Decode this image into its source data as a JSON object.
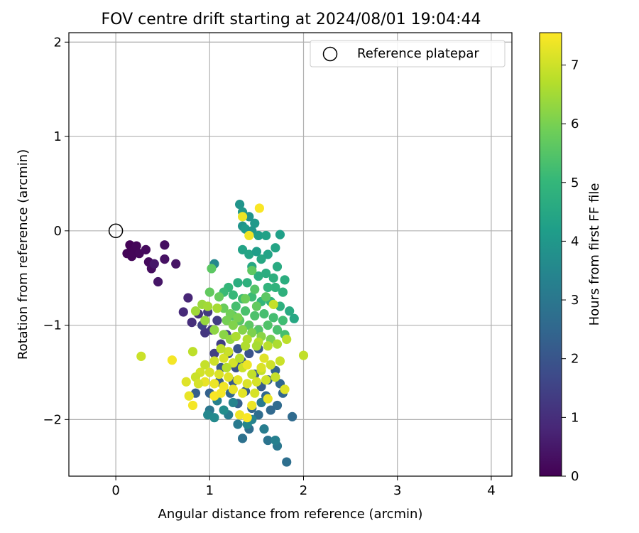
{
  "chart_data": {
    "type": "scatter",
    "title": "FOV centre drift starting at 2024/08/01 19:04:44",
    "xlabel": "Angular distance from reference (arcmin)",
    "ylabel": "Rotation from reference (arcmin)",
    "xlim": [
      -0.5,
      4.22
    ],
    "ylim": [
      -2.6,
      2.1
    ],
    "xticks": [
      0,
      1,
      2,
      3,
      4
    ],
    "yticks": [
      -2,
      -1,
      0,
      1,
      2
    ],
    "xtick_labels": [
      "0",
      "1",
      "2",
      "3",
      "4"
    ],
    "ytick_labels": [
      "−2",
      "−1",
      "0",
      "1",
      "2"
    ],
    "grid": true,
    "legend": {
      "position": "top-right",
      "entries": [
        {
          "label": "Reference platepar",
          "marker": "open-circle"
        }
      ]
    },
    "reference_point": {
      "x": 0,
      "y": 0
    },
    "colorbar": {
      "label": "Hours from first FF file",
      "range": [
        0,
        7.55
      ],
      "ticks": [
        0,
        1,
        2,
        3,
        4,
        5,
        6,
        7
      ],
      "colormap": "viridis",
      "colors": [
        "#440154",
        "#482878",
        "#3e4989",
        "#31688e",
        "#26828e",
        "#1f9e89",
        "#35b779",
        "#6ece58",
        "#b5de2b",
        "#fde725"
      ]
    },
    "points": [
      [
        0.15,
        -0.15,
        0.05
      ],
      [
        0.18,
        -0.22,
        0.1
      ],
      [
        0.22,
        -0.16,
        0.12
      ],
      [
        0.25,
        -0.24,
        0.15
      ],
      [
        0.12,
        -0.24,
        0.08
      ],
      [
        0.17,
        -0.27,
        0.1
      ],
      [
        0.35,
        -0.33,
        0.2
      ],
      [
        0.38,
        -0.4,
        0.25
      ],
      [
        0.32,
        -0.2,
        0.2
      ],
      [
        0.52,
        -0.15,
        0.3
      ],
      [
        0.52,
        -0.3,
        0.35
      ],
      [
        0.64,
        -0.35,
        0.4
      ],
      [
        0.45,
        -0.54,
        0.45
      ],
      [
        0.41,
        -0.35,
        0.5
      ],
      [
        0.77,
        -0.71,
        0.8
      ],
      [
        0.72,
        -0.86,
        0.9
      ],
      [
        0.81,
        -0.97,
        1.0
      ],
      [
        0.88,
        -0.88,
        1.1
      ],
      [
        0.95,
        -1.08,
        1.2
      ],
      [
        1.02,
        -1.05,
        1.25
      ],
      [
        0.98,
        -0.86,
        1.3
      ],
      [
        1.08,
        -0.95,
        1.35
      ],
      [
        1.12,
        -1.2,
        1.4
      ],
      [
        1.05,
        -1.3,
        1.45
      ],
      [
        0.92,
        -1.0,
        1.5
      ],
      [
        1.18,
        -1.1,
        1.55
      ],
      [
        1.2,
        -1.3,
        1.8
      ],
      [
        1.28,
        -1.45,
        1.9
      ],
      [
        1.34,
        -1.38,
        2.0
      ],
      [
        1.48,
        -1.52,
        2.1
      ],
      [
        1.55,
        -1.65,
        2.2
      ],
      [
        1.62,
        -1.58,
        2.3
      ],
      [
        1.7,
        -1.48,
        2.4
      ],
      [
        1.75,
        -1.62,
        2.5
      ],
      [
        1.38,
        -1.7,
        2.2
      ],
      [
        1.25,
        -1.6,
        2.1
      ],
      [
        1.3,
        -1.83,
        2.3
      ],
      [
        1.45,
        -1.88,
        2.4
      ],
      [
        1.6,
        -1.75,
        2.5
      ],
      [
        1.72,
        -1.85,
        2.6
      ],
      [
        1.78,
        -1.72,
        2.45
      ],
      [
        1.65,
        -1.9,
        2.55
      ],
      [
        1.52,
        -1.95,
        2.65
      ],
      [
        1.42,
        -2.1,
        2.7
      ],
      [
        1.35,
        -2.2,
        2.8
      ],
      [
        1.62,
        -2.22,
        2.9
      ],
      [
        1.72,
        -2.28,
        3.0
      ],
      [
        1.82,
        -2.45,
        2.75
      ],
      [
        1.88,
        -1.97,
        2.6
      ],
      [
        1.1,
        -1.6,
        2.15
      ],
      [
        1.0,
        -1.72,
        2.35
      ],
      [
        0.85,
        -1.72,
        2.25
      ],
      [
        1.12,
        -1.45,
        2.05
      ],
      [
        1.22,
        -1.72,
        2.5
      ],
      [
        1.3,
        -1.25,
        2.0
      ],
      [
        1.42,
        -1.3,
        1.95
      ],
      [
        1.52,
        -1.25,
        2.1
      ],
      [
        1.2,
        -1.95,
        3.2
      ],
      [
        1.3,
        -2.05,
        3.1
      ],
      [
        1.0,
        -1.9,
        3.0
      ],
      [
        1.08,
        -1.8,
        3.3
      ],
      [
        1.45,
        -2.0,
        3.4
      ],
      [
        1.58,
        -2.1,
        3.2
      ],
      [
        1.7,
        -2.22,
        3.3
      ],
      [
        0.98,
        -1.95,
        3.5
      ],
      [
        1.05,
        -1.98,
        3.6
      ],
      [
        1.25,
        -1.82,
        3.4
      ],
      [
        1.15,
        -1.9,
        3.7
      ],
      [
        1.4,
        -2.05,
        3.5
      ],
      [
        1.55,
        -1.82,
        3.1
      ],
      [
        1.05,
        -0.35,
        3.5
      ],
      [
        1.35,
        0.05,
        3.9
      ],
      [
        1.32,
        0.28,
        3.9
      ],
      [
        1.35,
        0.2,
        4.0
      ],
      [
        1.42,
        0.15,
        3.85
      ],
      [
        1.38,
        0.02,
        4.1
      ],
      [
        1.45,
        0.0,
        3.95
      ],
      [
        1.52,
        -0.05,
        4.2
      ],
      [
        1.6,
        -0.05,
        4.3
      ],
      [
        1.48,
        0.08,
        4.05
      ],
      [
        1.35,
        -0.2,
        4.35
      ],
      [
        1.42,
        -0.25,
        4.4
      ],
      [
        1.5,
        -0.22,
        4.2
      ],
      [
        1.55,
        -0.3,
        4.5
      ],
      [
        1.62,
        -0.25,
        4.35
      ],
      [
        1.7,
        -0.18,
        4.4
      ],
      [
        1.75,
        -0.04,
        4.25
      ],
      [
        1.72,
        -0.38,
        4.6
      ],
      [
        1.45,
        -0.38,
        4.5
      ],
      [
        1.52,
        -0.48,
        4.7
      ],
      [
        1.6,
        -0.45,
        4.65
      ],
      [
        1.68,
        -0.5,
        4.75
      ],
      [
        1.8,
        -0.52,
        4.7
      ],
      [
        1.78,
        -0.65,
        4.8
      ],
      [
        1.7,
        -0.6,
        4.85
      ],
      [
        1.62,
        -0.6,
        4.9
      ],
      [
        1.4,
        -0.55,
        4.8
      ],
      [
        1.3,
        -0.55,
        4.7
      ],
      [
        1.2,
        -0.6,
        5.0
      ],
      [
        1.15,
        -0.65,
        5.1
      ],
      [
        1.25,
        -0.68,
        5.05
      ],
      [
        1.35,
        -0.72,
        5.2
      ],
      [
        1.45,
        -0.7,
        5.15
      ],
      [
        1.55,
        -0.75,
        5.0
      ],
      [
        1.65,
        -0.75,
        4.9
      ],
      [
        1.75,
        -0.8,
        4.75
      ],
      [
        1.85,
        -0.85,
        4.6
      ],
      [
        1.9,
        -0.93,
        4.5
      ],
      [
        1.28,
        -0.8,
        5.3
      ],
      [
        1.38,
        -0.85,
        5.35
      ],
      [
        1.48,
        -0.9,
        5.4
      ],
      [
        1.58,
        -0.88,
        5.3
      ],
      [
        1.68,
        -0.92,
        5.25
      ],
      [
        1.78,
        -0.95,
        5.2
      ],
      [
        1.25,
        -0.9,
        5.5
      ],
      [
        1.32,
        -0.95,
        5.55
      ],
      [
        1.42,
        -1.0,
        5.6
      ],
      [
        1.52,
        -1.05,
        5.5
      ],
      [
        1.62,
        -1.0,
        5.45
      ],
      [
        1.72,
        -1.05,
        5.35
      ],
      [
        1.8,
        -1.1,
        5.3
      ],
      [
        1.02,
        -0.4,
        5.6
      ],
      [
        1.45,
        -0.42,
        5.65
      ],
      [
        1.0,
        -0.65,
        5.7
      ],
      [
        1.1,
        -0.7,
        5.75
      ],
      [
        1.15,
        -0.82,
        5.8
      ],
      [
        1.22,
        -0.88,
        5.9
      ],
      [
        1.3,
        -0.92,
        6.0
      ],
      [
        1.18,
        -0.95,
        5.95
      ],
      [
        1.25,
        -1.0,
        6.1
      ],
      [
        1.35,
        -1.05,
        6.15
      ],
      [
        1.45,
        -1.08,
        6.05
      ],
      [
        1.55,
        -1.12,
        6.2
      ],
      [
        1.65,
        -1.15,
        6.0
      ],
      [
        1.38,
        -0.72,
        5.85
      ],
      [
        1.5,
        -0.8,
        5.7
      ],
      [
        1.6,
        -0.7,
        5.6
      ],
      [
        1.48,
        -0.62,
        5.5
      ],
      [
        1.15,
        -1.1,
        6.2
      ],
      [
        1.22,
        -1.15,
        6.3
      ],
      [
        1.05,
        -1.05,
        6.25
      ],
      [
        0.95,
        -0.95,
        6.35
      ],
      [
        0.92,
        -0.78,
        6.4
      ],
      [
        0.85,
        -0.85,
        6.45
      ],
      [
        0.98,
        -0.8,
        6.5
      ],
      [
        1.08,
        -0.82,
        6.55
      ],
      [
        1.28,
        -1.12,
        6.6
      ],
      [
        1.4,
        -1.15,
        6.65
      ],
      [
        1.52,
        -1.18,
        6.7
      ],
      [
        1.62,
        -1.22,
        6.75
      ],
      [
        1.72,
        -1.2,
        6.6
      ],
      [
        1.68,
        -0.78,
        6.9
      ],
      [
        1.82,
        -1.15,
        6.8
      ],
      [
        2.0,
        -1.32,
        6.85
      ],
      [
        1.75,
        -1.38,
        6.95
      ],
      [
        1.65,
        -1.42,
        7.0
      ],
      [
        1.55,
        -1.48,
        6.9
      ],
      [
        1.45,
        -1.52,
        6.85
      ],
      [
        1.35,
        -1.45,
        6.95
      ],
      [
        1.25,
        -1.4,
        7.05
      ],
      [
        1.15,
        -1.35,
        7.1
      ],
      [
        1.05,
        -1.38,
        7.0
      ],
      [
        0.95,
        -1.42,
        6.9
      ],
      [
        0.9,
        -1.5,
        7.05
      ],
      [
        0.85,
        -1.55,
        6.95
      ],
      [
        0.82,
        -1.28,
        6.8
      ],
      [
        0.27,
        -1.33,
        6.95
      ],
      [
        1.0,
        -1.5,
        7.1
      ],
      [
        1.1,
        -1.52,
        7.15
      ],
      [
        1.2,
        -1.55,
        7.2
      ],
      [
        1.3,
        -1.58,
        7.25
      ],
      [
        1.4,
        -1.62,
        7.15
      ],
      [
        1.5,
        -1.6,
        7.1
      ],
      [
        1.6,
        -1.58,
        7.0
      ],
      [
        1.7,
        -1.55,
        6.9
      ],
      [
        0.95,
        -1.6,
        7.3
      ],
      [
        1.05,
        -1.62,
        7.35
      ],
      [
        1.15,
        -1.65,
        7.4
      ],
      [
        1.25,
        -1.68,
        7.3
      ],
      [
        1.35,
        -1.72,
        7.25
      ],
      [
        0.75,
        -1.6,
        7.2
      ],
      [
        0.78,
        -1.75,
        7.3
      ],
      [
        0.82,
        -1.85,
        7.45
      ],
      [
        0.88,
        -1.62,
        7.1
      ],
      [
        1.4,
        -1.42,
        7.35
      ],
      [
        1.05,
        -1.75,
        7.5
      ],
      [
        1.12,
        -1.72,
        7.45
      ],
      [
        1.32,
        -1.95,
        7.4
      ],
      [
        1.45,
        -1.85,
        7.35
      ],
      [
        1.62,
        -1.78,
        7.3
      ],
      [
        1.8,
        -1.68,
        7.2
      ],
      [
        1.4,
        -1.98,
        7.5
      ],
      [
        1.42,
        -0.05,
        7.4
      ],
      [
        1.35,
        0.15,
        7.35
      ],
      [
        1.53,
        0.24,
        7.5
      ],
      [
        0.6,
        -1.37,
        7.45
      ],
      [
        1.48,
        -1.72,
        7.1
      ],
      [
        1.55,
        -1.45,
        7.15
      ],
      [
        1.58,
        -1.35,
        7.2
      ],
      [
        1.2,
        -1.28,
        6.95
      ],
      [
        1.12,
        -1.25,
        6.8
      ],
      [
        1.18,
        -1.45,
        6.7
      ],
      [
        1.32,
        -1.35,
        6.75
      ],
      [
        1.38,
        -1.22,
        6.65
      ],
      [
        1.5,
        -1.22,
        6.55
      ]
    ]
  }
}
